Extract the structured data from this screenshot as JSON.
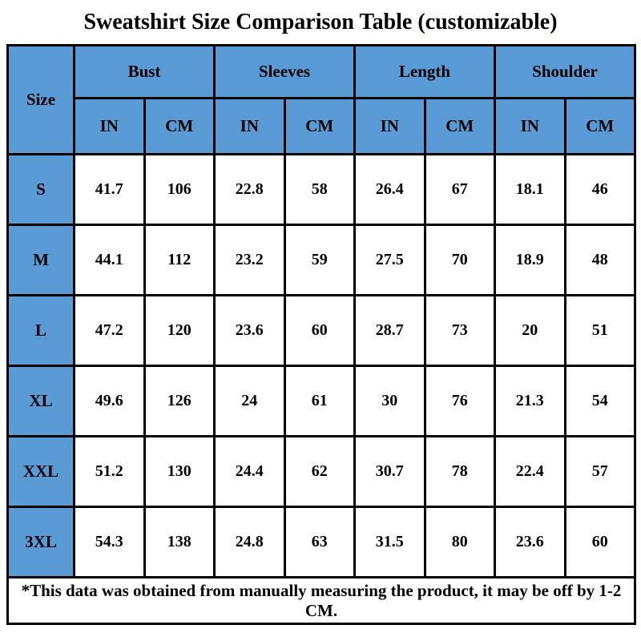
{
  "chart_data": {
    "type": "table",
    "title": "Sweatshirt Size Comparison Table (customizable)",
    "size_column_header": "Size",
    "column_groups": [
      "Bust",
      "Sleeves",
      "Length",
      "Shoulder"
    ],
    "unit_headers": [
      "IN",
      "CM",
      "IN",
      "CM",
      "IN",
      "CM",
      "IN",
      "CM"
    ],
    "rows": [
      {
        "size": "S",
        "values": [
          41.7,
          106,
          22.8,
          58,
          26.4,
          67,
          18.1,
          46
        ]
      },
      {
        "size": "M",
        "values": [
          44.1,
          112,
          23.2,
          59,
          27.5,
          70,
          18.9,
          48
        ]
      },
      {
        "size": "L",
        "values": [
          47.2,
          120,
          23.6,
          60,
          28.7,
          73,
          20,
          51
        ]
      },
      {
        "size": "XL",
        "values": [
          49.6,
          126,
          24,
          61,
          30,
          76,
          21.3,
          54
        ]
      },
      {
        "size": "XXL",
        "values": [
          51.2,
          130,
          24.4,
          62,
          30.7,
          78,
          22.4,
          57
        ]
      },
      {
        "size": "3XL",
        "values": [
          54.3,
          138,
          24.8,
          63,
          31.5,
          80,
          23.6,
          60
        ]
      }
    ],
    "footnote": "*This data was obtained from manually measuring the product, it may be off by 1-2 CM.",
    "layout": {
      "grid": "on",
      "header_bg": "#5B9BD5",
      "border_color": "#000000",
      "cell_bg": "#FFFFFF",
      "text_color": "#000000"
    }
  }
}
